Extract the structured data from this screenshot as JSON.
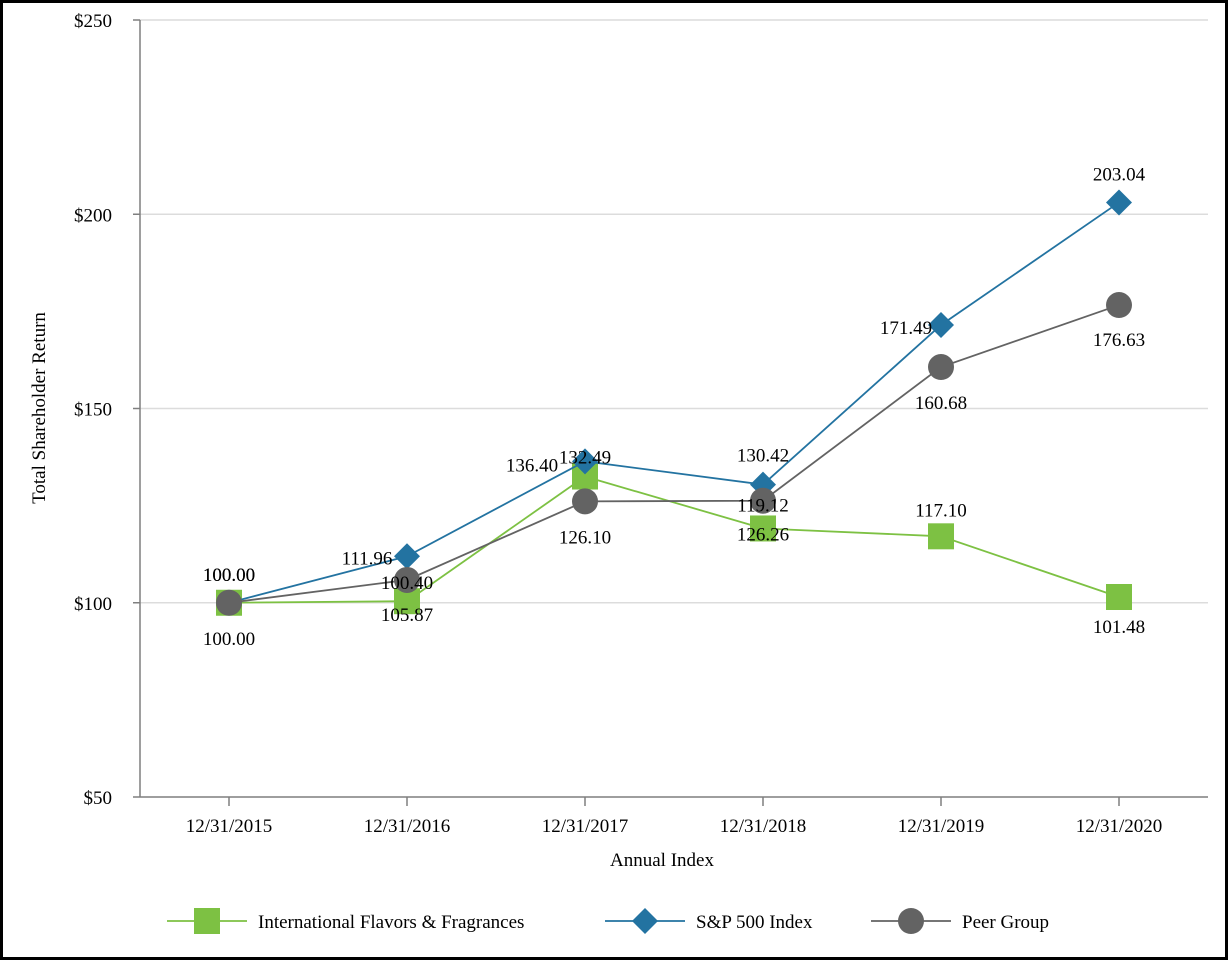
{
  "chart_data": {
    "type": "line",
    "title": "",
    "xlabel": "Annual Index",
    "ylabel": "Total Shareholder Return",
    "categories": [
      "12/31/2015",
      "12/31/2016",
      "12/31/2017",
      "12/31/2018",
      "12/31/2019",
      "12/31/2020"
    ],
    "ylim": [
      50,
      250
    ],
    "yticks": [
      50,
      100,
      150,
      200,
      250
    ],
    "ytick_labels": [
      "$50",
      "$100",
      "$150",
      "$200",
      "$250"
    ],
    "grid": true,
    "legend_position": "bottom",
    "series": [
      {
        "name": "International Flavors & Fragrances",
        "marker": "square",
        "color": "#7dc143",
        "values": [
          100.0,
          100.4,
          132.49,
          119.12,
          117.1,
          101.48
        ],
        "labels": [
          "100.00",
          "100.40",
          "132.49",
          "119.12",
          "117.10",
          "101.48"
        ]
      },
      {
        "name": "S&P 500 Index",
        "marker": "diamond",
        "color": "#2373a1",
        "values": [
          100.0,
          111.96,
          136.4,
          130.42,
          171.49,
          203.04
        ],
        "labels": [
          "100.00",
          "111.96",
          "136.40",
          "130.42",
          "171.49",
          "203.04"
        ]
      },
      {
        "name": "Peer Group",
        "marker": "circle",
        "color": "#636363",
        "values": [
          100.0,
          105.87,
          126.1,
          126.26,
          160.68,
          176.63
        ],
        "labels": [
          "100.00",
          "105.87",
          "126.10",
          "126.26",
          "160.68",
          "176.63"
        ]
      }
    ]
  }
}
